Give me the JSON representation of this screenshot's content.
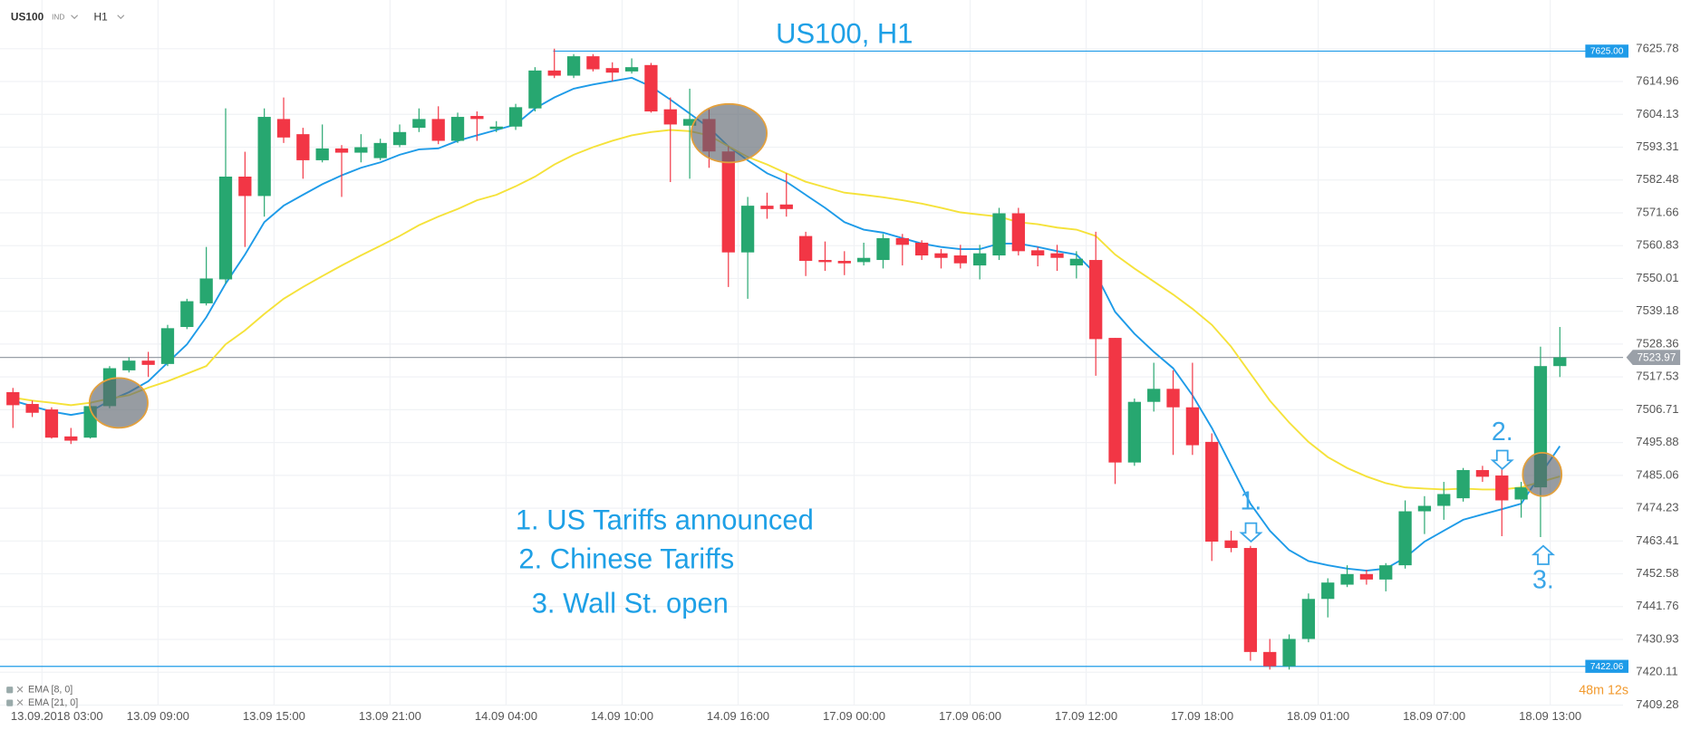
{
  "chart_data": {
    "type": "candlestick",
    "symbol": "US100",
    "symbol_type": "IND",
    "timeframe": "H1",
    "title": "US100, H1",
    "categories": [
      null,
      "13.09.2018 03:00",
      null,
      null,
      null,
      null,
      null,
      "13.09 09:00",
      null,
      null,
      null,
      null,
      null,
      "13.09 15:00",
      null,
      null,
      null,
      null,
      null,
      "13.09 21:00",
      null,
      null,
      null,
      null,
      null,
      "14.09 04:00",
      null,
      null,
      null,
      null,
      null,
      "14.09 10:00",
      null,
      null,
      null,
      null,
      null,
      "14.09 16:00",
      null,
      null,
      null,
      null,
      null,
      "17.09 00:00",
      null,
      null,
      null,
      null,
      null,
      "17.09 06:00",
      null,
      null,
      null,
      null,
      null,
      "17.09 12:00",
      null,
      null,
      null,
      null,
      null,
      "17.09 18:00",
      null,
      null,
      null,
      null,
      null,
      "18.09 01:00",
      null,
      null,
      null,
      null,
      null,
      "18.09 07:00",
      null,
      null,
      null,
      null,
      null,
      "18.09 13:00",
      null
    ],
    "open": [
      7512.5,
      7508.6,
      7506.8,
      7497.9,
      7497.5,
      7507.9,
      7519.7,
      7522.9,
      7521.8,
      7534.0,
      7541.8,
      7549.7,
      7583.6,
      7577.2,
      7602.6,
      7597.6,
      7589.0,
      7592.9,
      7591.5,
      7589.7,
      7594.0,
      7599.7,
      7602.6,
      7595.4,
      7603.6,
      7599.3,
      7600.1,
      7606.1,
      7618.6,
      7616.9,
      7623.3,
      7619.4,
      7618.3,
      7620.4,
      7605.8,
      7600.4,
      7602.6,
      7591.9,
      7558.6,
      7574.0,
      7574.4,
      7564.0,
      7556.1,
      7555.8,
      7555.4,
      7556.1,
      7563.3,
      7561.8,
      7558.3,
      7557.6,
      7554.3,
      7557.6,
      7571.5,
      7559.3,
      7558.3,
      7554.3,
      7556.1,
      7530.4,
      7489.3,
      7509.3,
      7513.6,
      7507.5,
      7496.1,
      7463.6,
      7461.1,
      7426.8,
      7422.1,
      7431.1,
      7444.3,
      7449.0,
      7452.5,
      7450.7,
      7455.4,
      7473.2,
      7475.0,
      7477.5,
      7486.8,
      7485.0,
      7477.1,
      7481.1,
      7521.1
    ],
    "high": [
      7513.9,
      7509.7,
      7507.5,
      7500.7,
      7509.0,
      7521.1,
      7524.0,
      7525.8,
      7534.7,
      7543.3,
      7560.4,
      7606.1,
      7591.8,
      7606.1,
      7609.7,
      7599.7,
      7600.8,
      7594.0,
      7597.6,
      7596.1,
      7600.8,
      7606.1,
      7606.8,
      7604.7,
      7605.1,
      7601.9,
      7607.6,
      7619.7,
      7625.8,
      7624.0,
      7624.0,
      7621.3,
      7622.6,
      7621.1,
      7609.7,
      7612.6,
      7606.1,
      7593.6,
      7576.9,
      7578.3,
      7584.7,
      7565.4,
      7562.2,
      7559.0,
      7561.8,
      7564.7,
      7564.7,
      7562.6,
      7559.7,
      7561.1,
      7561.1,
      7573.3,
      7573.3,
      7560.4,
      7561.1,
      7559.0,
      7565.4,
      7530.4,
      7510.4,
      7522.2,
      7519.7,
      7522.2,
      7498.9,
      7466.8,
      7461.8,
      7431.1,
      7432.6,
      7446.1,
      7451.1,
      7455.4,
      7453.9,
      7456.1,
      7476.8,
      7478.2,
      7482.9,
      7487.5,
      7488.2,
      7488.2,
      7482.9,
      7527.5,
      7534.0
    ],
    "low": [
      7500.7,
      7504.3,
      7497.2,
      7495.4,
      7497.2,
      7507.2,
      7519.0,
      7517.5,
      7521.1,
      7533.3,
      7541.1,
      7548.3,
      7560.4,
      7570.4,
      7594.7,
      7582.9,
      7588.3,
      7576.9,
      7588.3,
      7589.0,
      7593.3,
      7598.3,
      7594.3,
      7594.7,
      7595.4,
      7598.3,
      7599.0,
      7605.1,
      7616.1,
      7616.1,
      7618.3,
      7615.1,
      7617.6,
      7604.7,
      7581.8,
      7582.9,
      7586.5,
      7547.2,
      7543.3,
      7569.7,
      7570.4,
      7550.8,
      7552.5,
      7551.1,
      7554.3,
      7553.3,
      7554.3,
      7556.1,
      7553.3,
      7553.3,
      7549.7,
      7556.1,
      7557.6,
      7554.0,
      7552.5,
      7550.0,
      7517.9,
      7482.2,
      7488.2,
      7506.1,
      7491.8,
      7491.8,
      7456.8,
      7459.7,
      7423.9,
      7421.0,
      7421.0,
      7430.0,
      7438.2,
      7448.2,
      7449.0,
      7446.8,
      7454.3,
      7465.7,
      7470.4,
      7476.4,
      7482.9,
      7465.0,
      7471.1,
      7464.7,
      7517.5
    ],
    "close": [
      7508.2,
      7505.7,
      7497.5,
      7496.5,
      7507.9,
      7520.4,
      7522.9,
      7521.5,
      7533.6,
      7542.5,
      7550.0,
      7583.6,
      7577.2,
      7603.3,
      7596.5,
      7589.0,
      7592.9,
      7591.5,
      7593.3,
      7594.7,
      7598.3,
      7602.6,
      7595.4,
      7603.3,
      7602.6,
      7600.1,
      7606.5,
      7618.6,
      7616.9,
      7623.3,
      7619.0,
      7617.9,
      7619.7,
      7605.1,
      7600.8,
      7602.6,
      7591.9,
      7558.6,
      7574.0,
      7572.9,
      7572.9,
      7555.8,
      7555.4,
      7555.0,
      7556.8,
      7563.3,
      7561.1,
      7557.6,
      7556.8,
      7555.0,
      7558.3,
      7571.5,
      7559.0,
      7557.6,
      7556.8,
      7556.5,
      7530.0,
      7489.3,
      7509.3,
      7513.6,
      7507.5,
      7495.0,
      7463.2,
      7461.1,
      7426.8,
      7422.1,
      7431.1,
      7444.3,
      7449.7,
      7452.5,
      7450.7,
      7455.4,
      7473.2,
      7475.0,
      7478.9,
      7486.8,
      7484.6,
      7476.8,
      7481.1,
      7521.1,
      7523.97
    ],
    "up_color": "#27a770",
    "down_color": "#f23645",
    "lines": [
      {
        "name": "EMA [8, 0]",
        "color": "#1e9be8",
        "values": [
          7509.7,
          7507.9,
          7506.1,
          7505.0,
          7506.1,
          7509.7,
          7512.5,
          7516.1,
          7522.2,
          7528.3,
          7537.2,
          7548.3,
          7557.9,
          7568.6,
          7574.0,
          7577.6,
          7581.1,
          7584.0,
          7586.5,
          7588.3,
          7590.8,
          7592.6,
          7592.9,
          7595.4,
          7597.2,
          7599.0,
          7600.8,
          7606.1,
          7609.7,
          7612.6,
          7614.0,
          7615.1,
          7616.2,
          7613.3,
          7609.0,
          7604.4,
          7599.7,
          7593.6,
          7589.0,
          7584.7,
          7581.9,
          7577.6,
          7573.3,
          7568.6,
          7566.1,
          7565.1,
          7563.3,
          7561.5,
          7560.4,
          7559.7,
          7559.7,
          7561.5,
          7561.5,
          7560.4,
          7559.0,
          7557.9,
          7551.5,
          7539.0,
          7531.8,
          7525.8,
          7520.4,
          7511.5,
          7500.7,
          7488.2,
          7475.7,
          7466.8,
          7460.4,
          7456.8,
          7455.4,
          7454.3,
          7453.6,
          7454.3,
          7457.9,
          7463.2,
          7466.8,
          7470.4,
          7472.2,
          7473.9,
          7475.7,
          7485.4,
          7494.7
        ]
      },
      {
        "name": "EMA [21, 0]",
        "color": "#f5e23a",
        "values": [
          7510.7,
          7509.7,
          7509.0,
          7508.2,
          7509.0,
          7510.4,
          7511.5,
          7514.0,
          7516.1,
          7518.6,
          7521.1,
          7528.3,
          7532.9,
          7538.3,
          7543.3,
          7547.2,
          7550.8,
          7554.3,
          7557.6,
          7560.8,
          7564.0,
          7567.6,
          7570.4,
          7572.9,
          7575.8,
          7577.6,
          7580.4,
          7583.6,
          7587.6,
          7590.8,
          7593.3,
          7595.4,
          7597.2,
          7598.3,
          7599.0,
          7598.6,
          7597.2,
          7593.6,
          7590.1,
          7587.6,
          7584.7,
          7581.9,
          7580.1,
          7578.3,
          7577.6,
          7576.8,
          7575.8,
          7574.7,
          7573.3,
          7571.8,
          7571.1,
          7570.4,
          7568.6,
          7567.9,
          7566.8,
          7566.1,
          7564.0,
          7557.9,
          7553.3,
          7549.0,
          7544.7,
          7540.0,
          7534.7,
          7527.5,
          7518.6,
          7509.7,
          7502.5,
          7496.1,
          7491.1,
          7487.5,
          7484.7,
          7482.5,
          7481.1,
          7480.7,
          7480.4,
          7480.7,
          7480.4,
          7480.4,
          7481.1,
          7482.9,
          7484.7
        ]
      }
    ],
    "price_lines": [
      {
        "value": 7625,
        "label": "7625.00",
        "color": "#1e9be8"
      },
      {
        "value": 7422.06,
        "color": "#1e9be8"
      }
    ],
    "current_price": {
      "value": 7523.97,
      "color": "#9aa0a8"
    },
    "ylim": [
      7409.28,
      7625.78
    ],
    "yticks": [
      7625.78,
      7614.96,
      7604.13,
      7593.31,
      7582.48,
      7571.66,
      7560.83,
      7550.01,
      7539.18,
      7528.36,
      7517.53,
      7506.71,
      7495.88,
      7485.06,
      7474.23,
      7463.41,
      7452.58,
      7441.76,
      7430.93,
      7420.11,
      7409.28
    ],
    "grid": true,
    "annotations": [
      "1. US Tariffs announced",
      "2. Chinese Tariffs",
      "3. Wall St. open"
    ],
    "markers": [
      "1.",
      "2.",
      "3."
    ],
    "countdown": "48m 12s"
  }
}
